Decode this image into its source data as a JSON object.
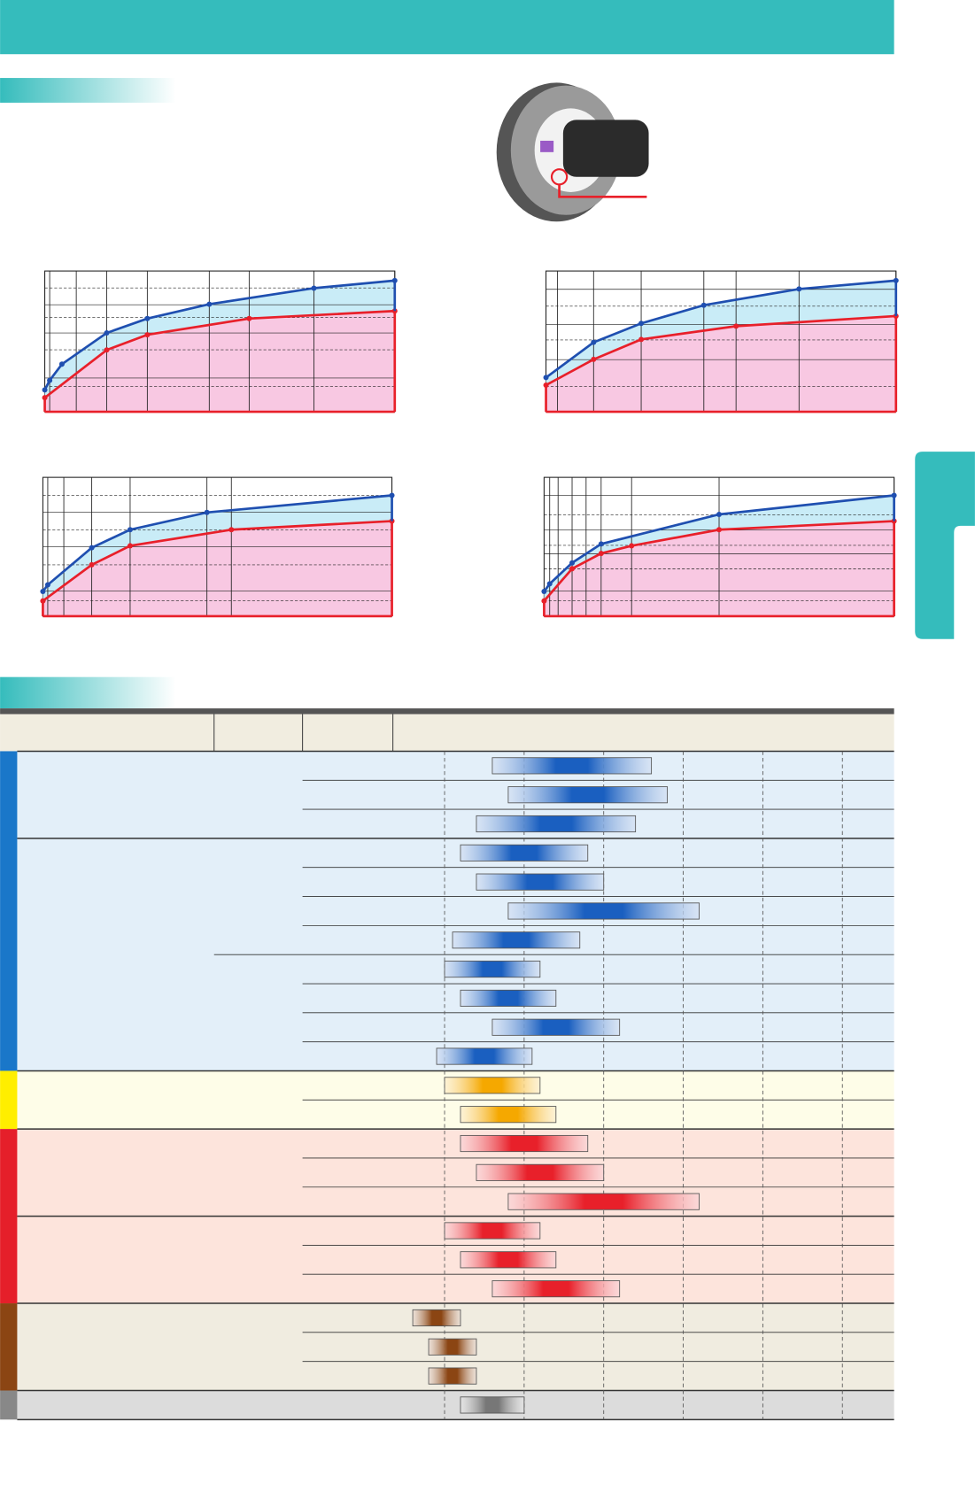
{
  "chart_data": [
    {
      "type": "line",
      "xlim": [
        0,
        100
      ],
      "ylim": [
        0,
        100
      ],
      "xticks": [
        1.4,
        9,
        17.7,
        29.3,
        47,
        58.4,
        76.9,
        100
      ],
      "yticks": [
        18,
        24,
        44,
        56,
        67,
        76,
        88
      ],
      "grid": true,
      "series": [
        {
          "color": "#1f4fb0",
          "x": [
            0,
            1.4,
            4.9,
            17.7,
            29.3,
            47,
            76.9,
            100
          ],
          "values": [
            15.5,
            22.3,
            33.8,
            56,
            66.2,
            76.4,
            87.8,
            93.2
          ]
        },
        {
          "color": "#e8202a",
          "x": [
            0,
            17.7,
            29.3,
            58.4,
            100
          ],
          "values": [
            10,
            43.9,
            54.7,
            66.2,
            71.6
          ]
        }
      ]
    },
    {
      "type": "line",
      "xlim": [
        0,
        100
      ],
      "ylim": [
        0,
        100
      ],
      "xticks": [
        3.3,
        13.6,
        27.2,
        45.1,
        54.3,
        72.3,
        100
      ],
      "yticks": [
        18,
        37,
        51,
        62,
        75,
        87
      ],
      "grid": true,
      "series": [
        {
          "color": "#1f4fb0",
          "x": [
            0,
            13.6,
            27.2,
            45.1,
            72.3,
            100
          ],
          "values": [
            24.3,
            49.3,
            62.8,
            75.7,
            87.2,
            93.2
          ]
        },
        {
          "color": "#e8202a",
          "x": [
            0,
            13.6,
            27.2,
            54.3,
            100
          ],
          "values": [
            18.9,
            37.2,
            51.4,
            60.8,
            68
          ]
        }
      ]
    },
    {
      "type": "line",
      "xlim": [
        0,
        100
      ],
      "ylim": [
        0,
        100
      ],
      "xticks": [
        1.4,
        6,
        14,
        25,
        47,
        54,
        100
      ],
      "yticks": [
        11,
        18,
        37,
        50,
        62,
        75,
        87
      ],
      "grid": true,
      "series": [
        {
          "color": "#1f4fb0",
          "x": [
            0,
            1.4,
            14,
            25,
            47,
            100
          ],
          "values": [
            17.8,
            22.6,
            49.3,
            62.3,
            74.7,
            87
          ]
        },
        {
          "color": "#e8202a",
          "x": [
            0,
            14,
            25,
            54,
            100
          ],
          "values": [
            11,
            37,
            50.7,
            62.3,
            68.5
          ]
        }
      ]
    },
    {
      "type": "line",
      "xlim": [
        0,
        100
      ],
      "ylim": [
        0,
        100
      ],
      "xticks": [
        1.6,
        4,
        8,
        12,
        16.3,
        25,
        50,
        100
      ],
      "yticks": [
        11,
        18,
        34,
        45,
        51,
        62,
        73,
        87
      ],
      "grid": true,
      "series": [
        {
          "color": "#1f4fb0",
          "x": [
            0,
            1.6,
            8,
            16.3,
            50,
            100
          ],
          "values": [
            17.8,
            23.3,
            38.4,
            52,
            73.3,
            87
          ]
        },
        {
          "color": "#e8202a",
          "x": [
            0,
            8,
            16.3,
            25,
            50,
            100
          ],
          "values": [
            11,
            34.2,
            45.2,
            50.7,
            62.3,
            68.5
          ]
        }
      ]
    },
    {
      "type": "range",
      "xlim": [
        0.35,
        6.65
      ],
      "xticks": [
        1,
        2,
        3,
        4,
        5,
        6
      ],
      "starts": [
        1.6,
        1.8,
        1.4,
        1.2,
        1.4,
        1.8,
        1.1,
        1.0,
        1.2,
        1.6,
        0.9,
        1.0,
        1.2,
        1.2,
        1.4,
        1.8,
        1.0,
        1.2,
        1.6,
        0.6,
        0.8,
        0.8,
        1.2
      ],
      "ends": [
        3.6,
        3.8,
        3.4,
        2.8,
        3.0,
        4.2,
        2.7,
        2.2,
        2.4,
        3.2,
        2.1,
        2.2,
        2.4,
        2.8,
        3.0,
        4.2,
        2.2,
        2.4,
        3.2,
        1.2,
        1.4,
        1.4,
        2.0
      ],
      "colors": [
        "#1a5fc0",
        "#1a5fc0",
        "#1a5fc0",
        "#1a5fc0",
        "#1a5fc0",
        "#1a5fc0",
        "#1a5fc0",
        "#1a5fc0",
        "#1a5fc0",
        "#1a5fc0",
        "#1a5fc0",
        "#f5a800",
        "#f5a800",
        "#e8202a",
        "#e8202a",
        "#e8202a",
        "#e8202a",
        "#e8202a",
        "#e8202a",
        "#8b4513",
        "#8b4513",
        "#8b4513",
        "#777777"
      ]
    }
  ]
}
